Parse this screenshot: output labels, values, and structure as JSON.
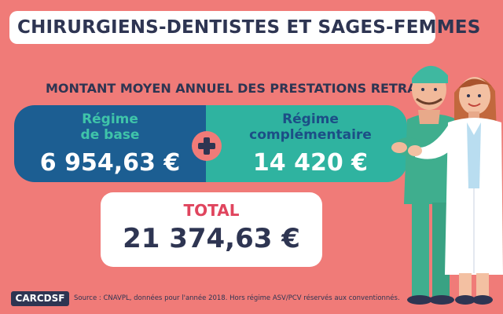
{
  "title": "CHIRURGIENS-DENTISTES ET SAGES-FEMMES",
  "subtitle": "MONTANT MOYEN ANNUEL DES PRESTATIONS RETRAITE",
  "regime_base": {
    "label_line1": "Régime",
    "label_line2": "de base",
    "amount": "6 954,63 €",
    "value": 6954.63
  },
  "regime_complementaire": {
    "label_line1": "Régime",
    "label_line2": "complémentaire",
    "amount": "14 420 €",
    "value": 14420
  },
  "total": {
    "label": "TOTAL",
    "amount": "21 374,63 €",
    "value": 21374.63
  },
  "logo": "CARCDSF",
  "source": "Source : CNAVPL, données pour l'année 2018. Hors régime ASV/PCV réservés aux conventionnés.",
  "icons": {
    "plus": "plus-icon"
  },
  "colors": {
    "background": "#F07B78",
    "navy": "#2E3552",
    "blue": "#1C5E92",
    "teal": "#2FB3A0",
    "total_red": "#E0455E"
  }
}
